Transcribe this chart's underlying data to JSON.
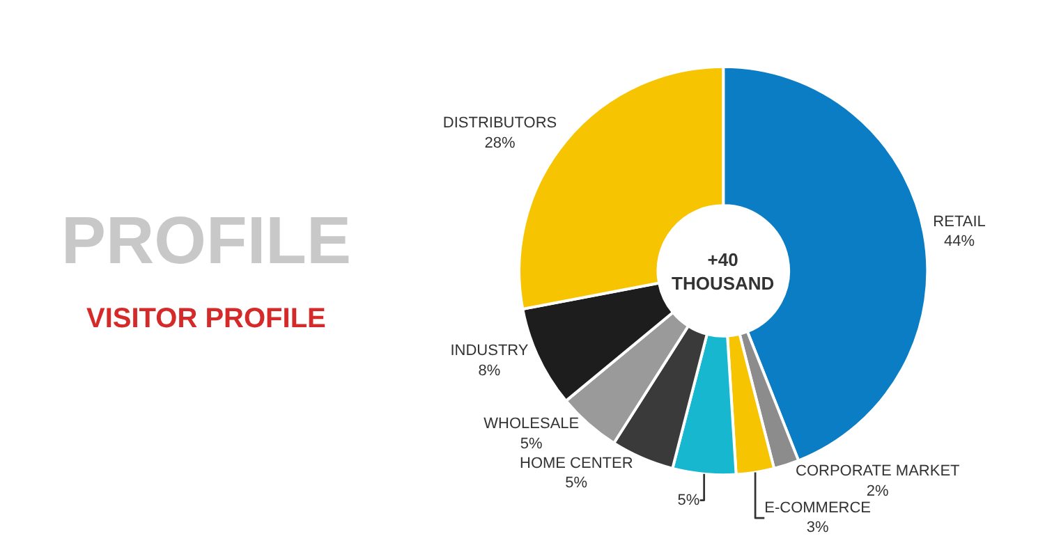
{
  "chart_data": {
    "type": "donut",
    "title": "VISITOR PROFILE",
    "categories": [
      "RETAIL",
      "CORPORATE MARKET",
      "E-COMMERCE",
      null,
      "HOME CENTER",
      "WHOLESALE",
      "INDUSTRY",
      "DISTRIBUTORS"
    ],
    "values": [
      44,
      2,
      3,
      5,
      5,
      5,
      8,
      28
    ],
    "value_labels": [
      "44%",
      "2%",
      "3%",
      "5%",
      "5%",
      "5%",
      "8%",
      "28%"
    ],
    "colors": [
      "#0a7dc4",
      "#8c8c8c",
      "#f6c400",
      "#17b7cf",
      "#3a3a3a",
      "#9a9a9a",
      "#1d1d1d",
      "#f6c400"
    ],
    "annotations": [
      "PROFILE",
      "+40 THOUSAND"
    ],
    "legend": false
  }
}
